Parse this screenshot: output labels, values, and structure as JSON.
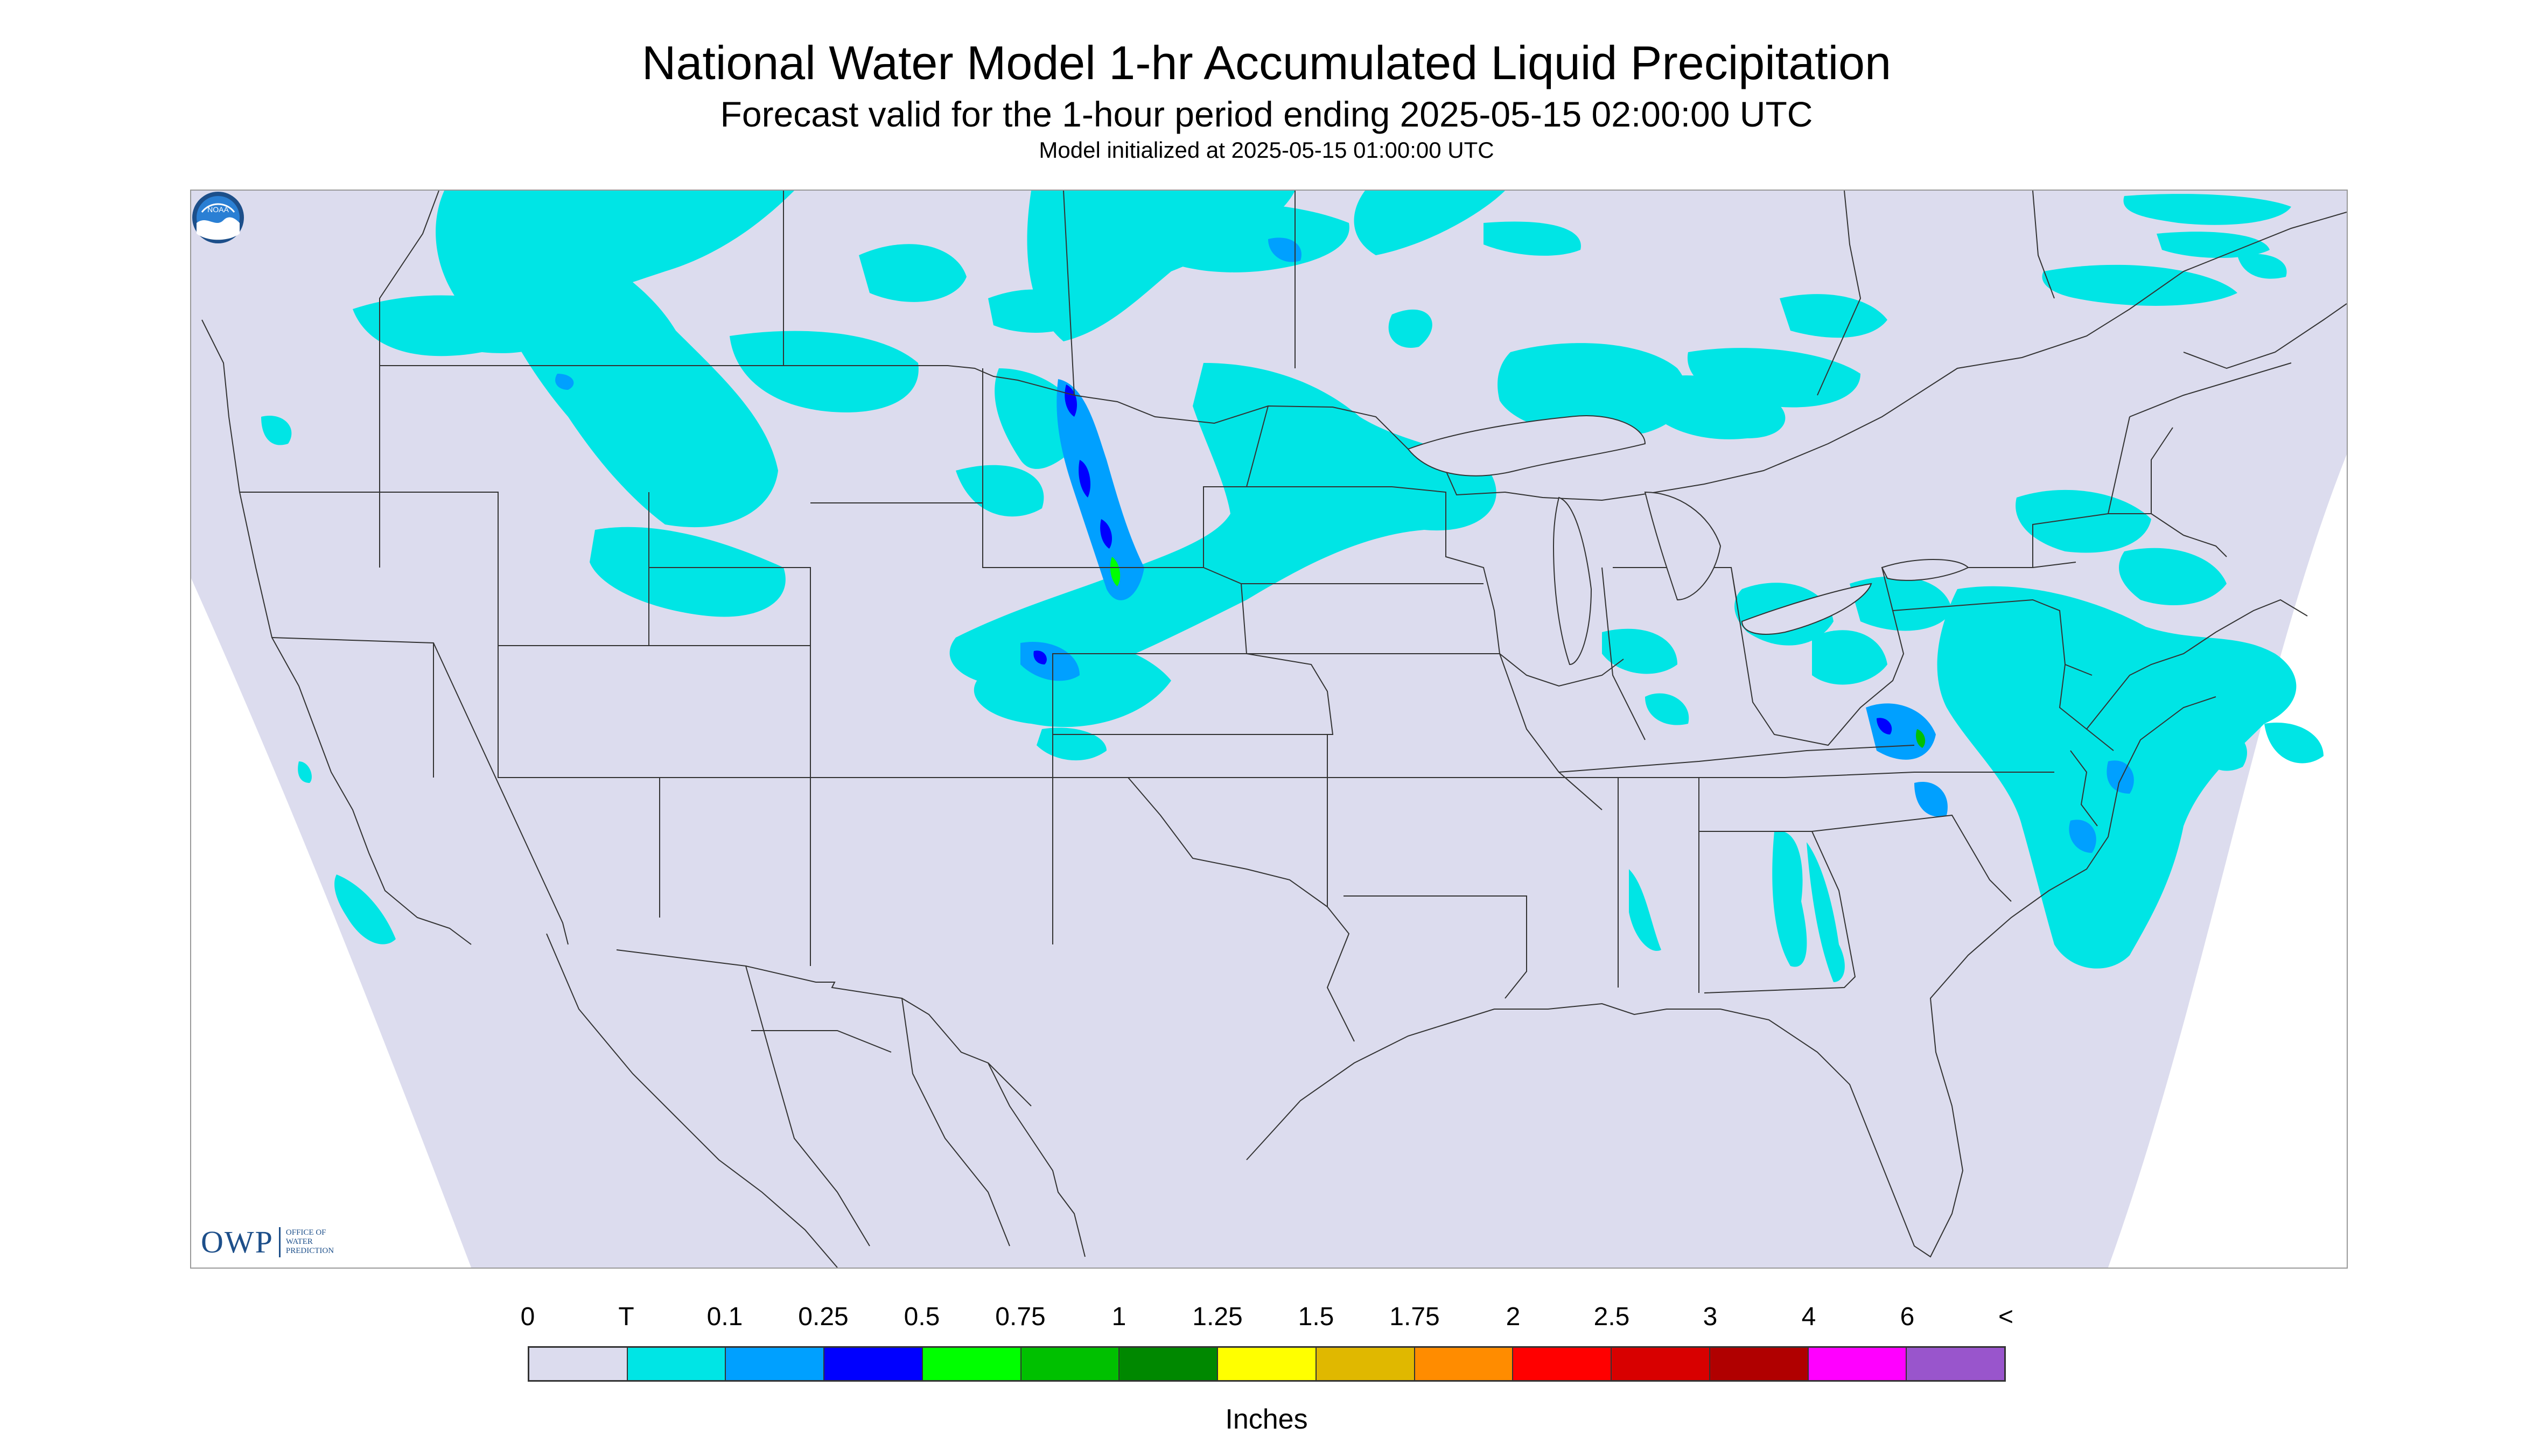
{
  "header": {
    "title": "National Water Model 1-hr Accumulated Liquid Precipitation",
    "subtitle": "Forecast valid for the 1-hour period ending 2025-05-15 02:00:00 UTC",
    "init_line": "Model initialized at 2025-05-15 01:00:00 UTC"
  },
  "logos": {
    "owp_mark": "OWP",
    "owp_text": "Office of Water Prediction",
    "noaa_text": "NOAA",
    "noaa_icon": "noaa-logo-icon"
  },
  "colors": {
    "domain_fill": "#dcdcee",
    "outside_fill": "#ffffff",
    "precip_trace": "#00e5e5",
    "precip_010": "#00a0ff",
    "precip_025": "#0000ff",
    "precip_050": "#00ff00",
    "precip_075": "#00c000",
    "border_line": "#333333"
  },
  "legend": {
    "tick_labels": [
      "0",
      "T",
      "0.1",
      "0.25",
      "0.5",
      "0.75",
      "1",
      "1.25",
      "1.5",
      "1.75",
      "2",
      "2.5",
      "3",
      "4",
      "6",
      "<"
    ],
    "colors": [
      "#dcdcee",
      "#00e5e5",
      "#00a0ff",
      "#0000ff",
      "#00ff00",
      "#00c000",
      "#008800",
      "#ffff00",
      "#e0b800",
      "#ff8c00",
      "#ff0000",
      "#d80000",
      "#b00000",
      "#ff00ff",
      "#9955cc"
    ],
    "units": "Inches"
  }
}
